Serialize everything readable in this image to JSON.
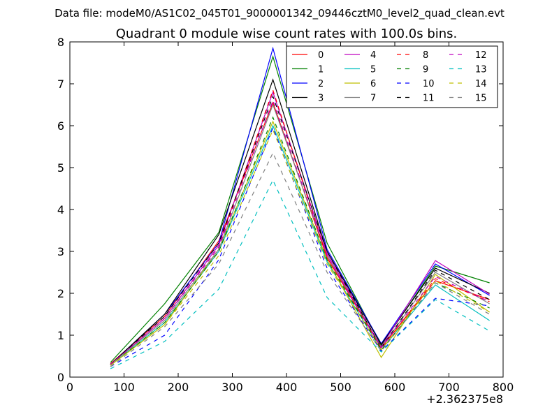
{
  "chart_data": {
    "type": "line",
    "suptitle": "Data file: modeM0/AS1C02_045T01_9000001342_09446cztM0_level2_quad_clean.evt",
    "title": "Quadrant 0 module wise count rates with 100.0s bins.",
    "xlabel": "",
    "ylabel": "",
    "x_offset_label": "+2.362375e8",
    "xlim": [
      0,
      800
    ],
    "ylim": [
      0,
      8
    ],
    "x_ticks": [
      0,
      100,
      200,
      300,
      400,
      500,
      600,
      700,
      800
    ],
    "y_ticks": [
      0,
      1,
      2,
      3,
      4,
      5,
      6,
      7,
      8
    ],
    "x": [
      75,
      175,
      275,
      375,
      475,
      575,
      675,
      775
    ],
    "legend_position": "top-right",
    "series": [
      {
        "name": "0",
        "color": "#ff0000",
        "dash": "solid",
        "values": [
          0.32,
          1.45,
          3.25,
          6.55,
          2.85,
          0.7,
          2.3,
          1.85
        ]
      },
      {
        "name": "1",
        "color": "#008000",
        "dash": "solid",
        "values": [
          0.35,
          1.75,
          3.45,
          7.65,
          3.2,
          0.75,
          2.65,
          2.25
        ]
      },
      {
        "name": "2",
        "color": "#0000ff",
        "dash": "solid",
        "values": [
          0.3,
          1.5,
          3.2,
          7.85,
          3.05,
          0.8,
          2.7,
          1.95
        ]
      },
      {
        "name": "3",
        "color": "#000000",
        "dash": "solid",
        "values": [
          0.3,
          1.5,
          3.4,
          7.1,
          3.0,
          0.78,
          2.6,
          2.0
        ]
      },
      {
        "name": "4",
        "color": "#bf00bf",
        "dash": "solid",
        "values": [
          0.3,
          1.4,
          3.15,
          6.8,
          2.95,
          0.72,
          2.78,
          1.98
        ]
      },
      {
        "name": "5",
        "color": "#00bfbf",
        "dash": "solid",
        "values": [
          0.28,
          1.3,
          3.0,
          6.0,
          2.75,
          0.65,
          2.2,
          1.35
        ]
      },
      {
        "name": "6",
        "color": "#bfbf00",
        "dash": "solid",
        "values": [
          0.28,
          1.25,
          3.05,
          6.1,
          2.8,
          0.47,
          2.45,
          1.55
        ]
      },
      {
        "name": "7",
        "color": "#808080",
        "dash": "solid",
        "values": [
          0.3,
          1.35,
          3.05,
          6.5,
          2.9,
          0.7,
          2.5,
          1.75
        ]
      },
      {
        "name": "8",
        "color": "#ff0000",
        "dash": "dashed",
        "values": [
          0.3,
          1.4,
          3.1,
          6.85,
          2.85,
          0.68,
          2.35,
          1.8
        ]
      },
      {
        "name": "9",
        "color": "#008000",
        "dash": "dashed",
        "values": [
          0.28,
          1.3,
          3.0,
          6.2,
          2.8,
          0.65,
          2.25,
          1.65
        ]
      },
      {
        "name": "10",
        "color": "#0000ff",
        "dash": "dashed",
        "values": [
          0.25,
          1.0,
          2.8,
          5.95,
          2.6,
          0.62,
          1.88,
          1.7
        ]
      },
      {
        "name": "11",
        "color": "#000000",
        "dash": "dashed",
        "values": [
          0.3,
          1.45,
          3.2,
          6.7,
          3.0,
          0.7,
          2.55,
          1.85
        ]
      },
      {
        "name": "12",
        "color": "#bf00bf",
        "dash": "dashed",
        "values": [
          0.3,
          1.4,
          3.1,
          6.6,
          2.9,
          0.7,
          2.4,
          1.8
        ]
      },
      {
        "name": "13",
        "color": "#00bfbf",
        "dash": "dashed",
        "values": [
          0.2,
          0.85,
          2.1,
          4.7,
          1.9,
          0.6,
          1.85,
          1.1
        ]
      },
      {
        "name": "14",
        "color": "#bfbf00",
        "dash": "dashed",
        "values": [
          0.28,
          1.25,
          2.9,
          5.9,
          2.7,
          0.65,
          2.3,
          1.55
        ]
      },
      {
        "name": "15",
        "color": "#808080",
        "dash": "dashed",
        "values": [
          0.25,
          1.2,
          2.7,
          5.35,
          2.5,
          0.62,
          2.25,
          1.5
        ]
      }
    ]
  }
}
